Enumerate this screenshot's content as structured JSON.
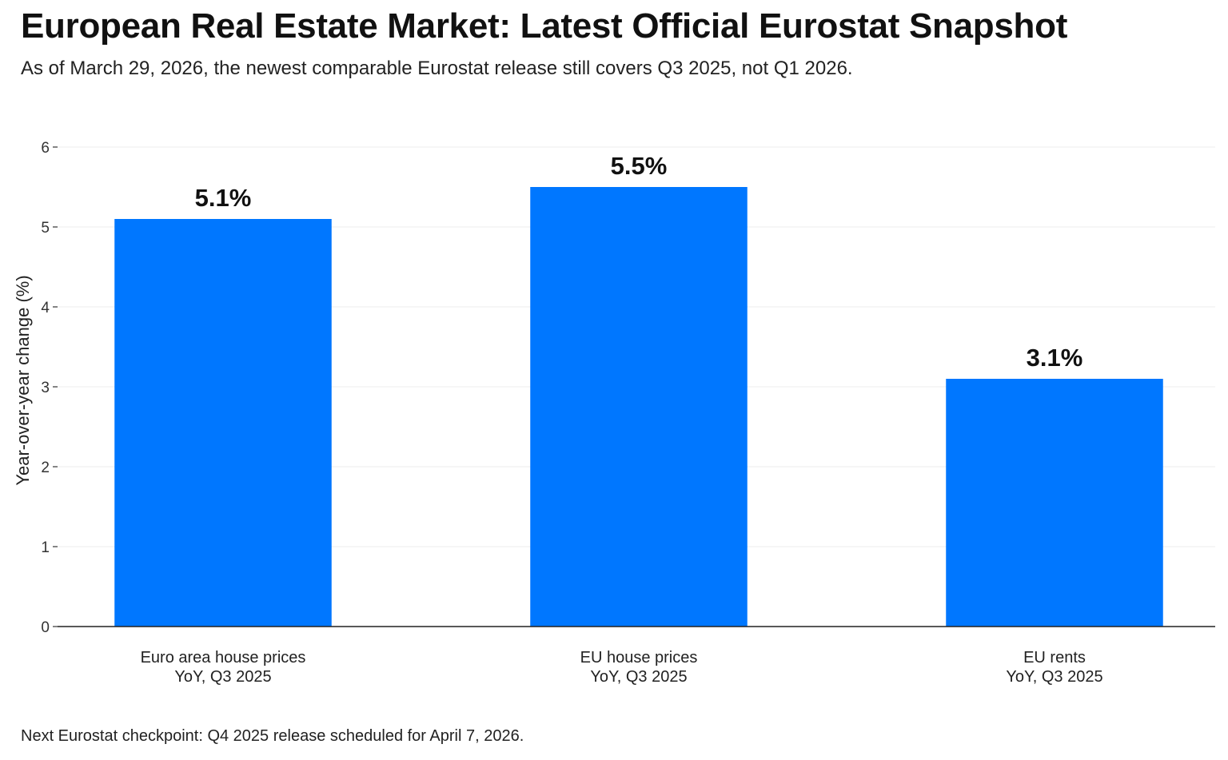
{
  "header": {
    "title": "European Real Estate Market: Latest Official Eurostat Snapshot",
    "subtitle": "As of March 29, 2026, the newest comparable Eurostat release still covers Q3 2025, not Q1 2026."
  },
  "footer": {
    "note": "Next Eurostat checkpoint: Q4 2025 release scheduled for April 7, 2026."
  },
  "chart_data": {
    "type": "bar",
    "title": "European Real Estate Market: Latest Official Eurostat Snapshot",
    "subtitle": "As of March 29, 2026, the newest comparable Eurostat release still covers Q3 2025, not Q1 2026.",
    "xlabel": "",
    "ylabel": "Year-over-year change (%)",
    "categories": [
      [
        "Euro area house prices",
        "YoY, Q3 2025"
      ],
      [
        "EU house prices",
        "YoY, Q3 2025"
      ],
      [
        "EU rents",
        "YoY, Q3 2025"
      ]
    ],
    "values": [
      5.1,
      5.5,
      3.1
    ],
    "data_labels": [
      "5.1%",
      "5.5%",
      "3.1%"
    ],
    "ylim": [
      0,
      6
    ],
    "yticks": [
      0,
      1,
      2,
      3,
      4,
      5,
      6
    ],
    "grid": true,
    "legend": "none",
    "bar_color": "#0077ff"
  }
}
